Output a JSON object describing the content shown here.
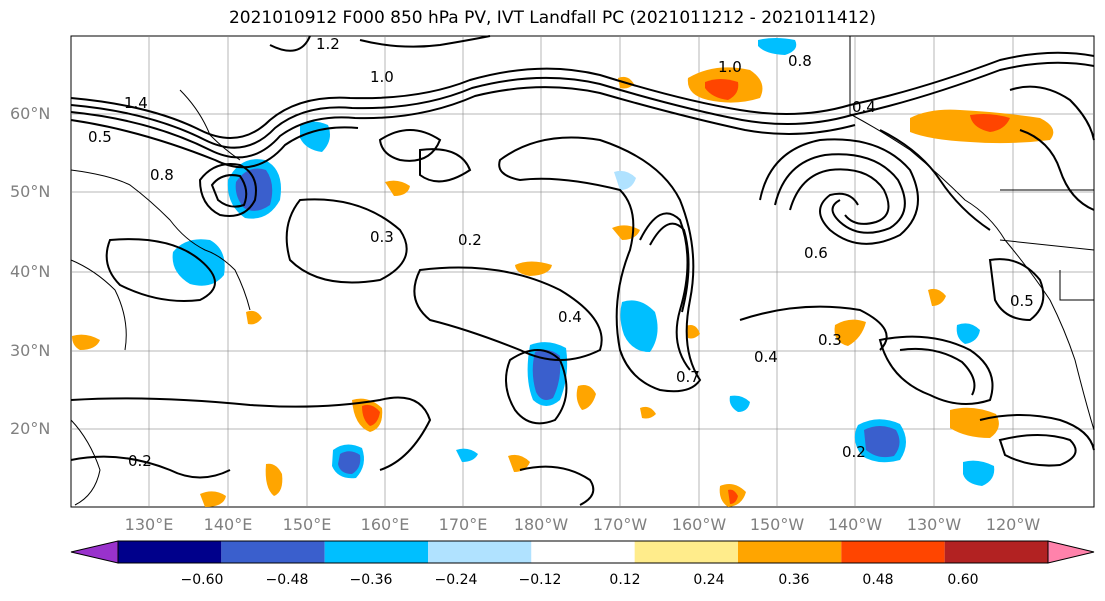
{
  "title": "2021010912 F000 850 hPa PV, IVT Landfall PC (2021011212 - 2021011412)",
  "lat_labels": [
    "60°N",
    "50°N",
    "40°N",
    "30°N",
    "20°N"
  ],
  "lon_labels": [
    "130°E",
    "140°E",
    "150°E",
    "160°E",
    "170°E",
    "180°W",
    "170°W",
    "160°W",
    "150°W",
    "140°W",
    "130°W",
    "120°W"
  ],
  "colorbar": {
    "ticks": [
      "−0.60",
      "−0.48",
      "−0.36",
      "−0.24",
      "−0.12",
      "0.12",
      "0.24",
      "0.36",
      "0.48",
      "0.60"
    ],
    "colors": [
      "#9932cc",
      "#00008b",
      "#3a5fcd",
      "#00bfff",
      "#b0e2ff",
      "#ffffff",
      "#ffec8b",
      "#ffa500",
      "#ff4500",
      "#b22222",
      "#ff82ab"
    ]
  },
  "contour_labels": [
    "1.2",
    "1.0",
    "1.4",
    "0.8",
    "0.5",
    "0.3",
    "0.2",
    "0.4",
    "0.7",
    "0.6",
    "1.0",
    "0.8",
    "0.4",
    "0.2",
    "0.3",
    "0.2",
    "0.5",
    "0.4"
  ]
}
